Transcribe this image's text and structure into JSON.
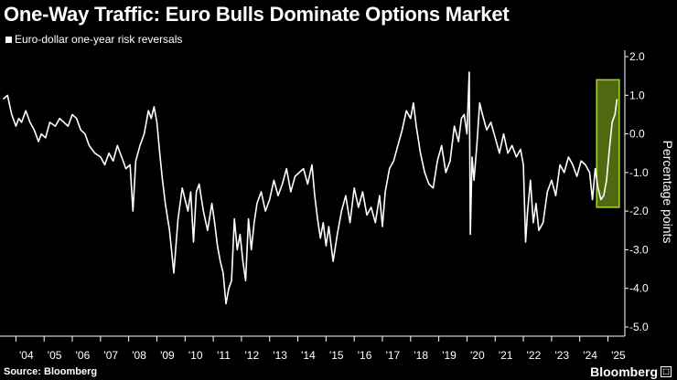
{
  "header": {
    "title": "One-Way Traffic: Euro Bulls Dominate Options Market"
  },
  "footer": {
    "source": "Source: Bloomberg",
    "brand": "Bloomberg"
  },
  "colors": {
    "background": "#000000",
    "line": "#ffffff",
    "highlight_fill": "#8fbf1f",
    "highlight_stroke": "#a8d62a"
  },
  "chart_data": {
    "type": "line",
    "legend": "Euro-dollar one-year risk reversals",
    "ylabel": "Percentage points",
    "ylim": [
      -5.0,
      2.0
    ],
    "yticks": [
      "2.0",
      "1.0",
      "0.0",
      "-1.0",
      "-2.0",
      "-3.0",
      "-4.0",
      "-5.0"
    ],
    "xlim": [
      2003.5,
      2025.6
    ],
    "xticks": [
      "'04",
      "'05",
      "'06",
      "'07",
      "'08",
      "'09",
      "'10",
      "'11",
      "'12",
      "'13",
      "'14",
      "'15",
      "'16",
      "'17",
      "'18",
      "'19",
      "'20",
      "'21",
      "'22",
      "'23",
      "'24",
      "'25"
    ],
    "highlight": {
      "x": [
        2024.6,
        2025.4
      ],
      "y": [
        -1.9,
        1.4
      ]
    },
    "series": [
      {
        "x": [
          2003.55,
          2003.7,
          2003.85,
          2004.0,
          2004.1,
          2004.2,
          2004.35,
          2004.5,
          2004.65,
          2004.8,
          2004.9,
          2005.05,
          2005.2,
          2005.4,
          2005.55,
          2005.7,
          2005.85,
          2006.0,
          2006.15,
          2006.3,
          2006.45,
          2006.6,
          2006.8,
          2007.0,
          2007.15,
          2007.3,
          2007.45,
          2007.6,
          2007.75,
          2007.9,
          2008.05,
          2008.15,
          2008.25,
          2008.4,
          2008.55,
          2008.7,
          2008.8,
          2008.9,
          2009.0,
          2009.1,
          2009.2,
          2009.3,
          2009.45,
          2009.6,
          2009.75,
          2009.9,
          2010.0,
          2010.1,
          2010.2,
          2010.3,
          2010.4,
          2010.5,
          2010.65,
          2010.8,
          2010.95,
          2011.05,
          2011.15,
          2011.25,
          2011.35,
          2011.45,
          2011.55,
          2011.65,
          2011.75,
          2011.85,
          2011.95,
          2012.05,
          2012.15,
          2012.25,
          2012.35,
          2012.45,
          2012.55,
          2012.7,
          2012.85,
          2013.0,
          2013.15,
          2013.3,
          2013.45,
          2013.6,
          2013.75,
          2013.9,
          2014.05,
          2014.2,
          2014.35,
          2014.5,
          2014.6,
          2014.7,
          2014.8,
          2014.9,
          2015.0,
          2015.1,
          2015.25,
          2015.4,
          2015.55,
          2015.7,
          2015.85,
          2016.0,
          2016.15,
          2016.3,
          2016.45,
          2016.6,
          2016.75,
          2016.9,
          2017.0,
          2017.1,
          2017.25,
          2017.4,
          2017.55,
          2017.7,
          2017.85,
          2018.0,
          2018.1,
          2018.2,
          2018.35,
          2018.5,
          2018.65,
          2018.8,
          2018.95,
          2019.1,
          2019.25,
          2019.4,
          2019.55,
          2019.7,
          2019.8,
          2019.9,
          2020.0,
          2020.08,
          2020.12,
          2020.18,
          2020.25,
          2020.35,
          2020.45,
          2020.55,
          2020.7,
          2020.85,
          2021.0,
          2021.15,
          2021.3,
          2021.45,
          2021.6,
          2021.75,
          2021.9,
          2022.0,
          2022.08,
          2022.15,
          2022.25,
          2022.35,
          2022.45,
          2022.55,
          2022.7,
          2022.85,
          2023.0,
          2023.15,
          2023.3,
          2023.45,
          2023.6,
          2023.75,
          2023.9,
          2024.05,
          2024.2,
          2024.35,
          2024.45,
          2024.55,
          2024.65,
          2024.75,
          2024.85,
          2024.95,
          2025.05,
          2025.15,
          2025.25,
          2025.32
        ],
        "y": [
          0.9,
          1.0,
          0.5,
          0.2,
          0.4,
          0.3,
          0.6,
          0.3,
          0.1,
          -0.2,
          0.0,
          -0.1,
          0.3,
          0.2,
          0.4,
          0.3,
          0.2,
          0.5,
          0.4,
          0.1,
          0.0,
          -0.3,
          -0.5,
          -0.6,
          -0.8,
          -0.5,
          -0.7,
          -0.3,
          -0.6,
          -0.9,
          -0.8,
          -2.0,
          -0.7,
          -0.3,
          0.0,
          0.6,
          0.4,
          0.7,
          0.3,
          -0.5,
          -1.2,
          -1.8,
          -2.5,
          -3.6,
          -2.2,
          -1.4,
          -1.7,
          -2.0,
          -1.5,
          -2.8,
          -1.5,
          -1.3,
          -2.0,
          -2.5,
          -1.8,
          -2.3,
          -2.9,
          -3.3,
          -3.6,
          -4.4,
          -4.0,
          -3.8,
          -2.2,
          -3.0,
          -2.6,
          -3.3,
          -3.8,
          -2.2,
          -3.0,
          -2.3,
          -1.8,
          -1.5,
          -2.0,
          -1.7,
          -1.2,
          -1.6,
          -1.3,
          -0.9,
          -1.5,
          -1.1,
          -1.0,
          -0.9,
          -1.3,
          -0.8,
          -1.6,
          -2.2,
          -2.7,
          -2.3,
          -2.9,
          -2.4,
          -3.3,
          -2.6,
          -2.0,
          -1.6,
          -2.3,
          -1.4,
          -1.9,
          -1.5,
          -2.1,
          -1.9,
          -2.3,
          -1.6,
          -2.4,
          -1.5,
          -0.9,
          -0.7,
          -0.3,
          0.1,
          0.6,
          0.4,
          0.8,
          0.2,
          -0.5,
          -1.0,
          -1.3,
          -1.4,
          -0.7,
          -0.3,
          -1.0,
          -0.7,
          0.2,
          -0.2,
          0.4,
          0.5,
          0.0,
          1.6,
          -2.6,
          -0.6,
          -1.2,
          -0.3,
          0.8,
          0.5,
          0.1,
          0.3,
          -0.1,
          -0.5,
          0.0,
          -0.5,
          -0.3,
          -0.6,
          -0.4,
          -0.8,
          -2.8,
          -2.0,
          -1.2,
          -2.3,
          -1.8,
          -2.5,
          -2.3,
          -1.5,
          -1.2,
          -1.6,
          -0.8,
          -1.0,
          -0.6,
          -0.8,
          -1.1,
          -0.7,
          -0.8,
          -1.0,
          -1.7,
          -0.9,
          -1.4,
          -1.7,
          -1.6,
          -1.2,
          -0.4,
          0.3,
          0.5,
          0.9
        ]
      }
    ]
  }
}
